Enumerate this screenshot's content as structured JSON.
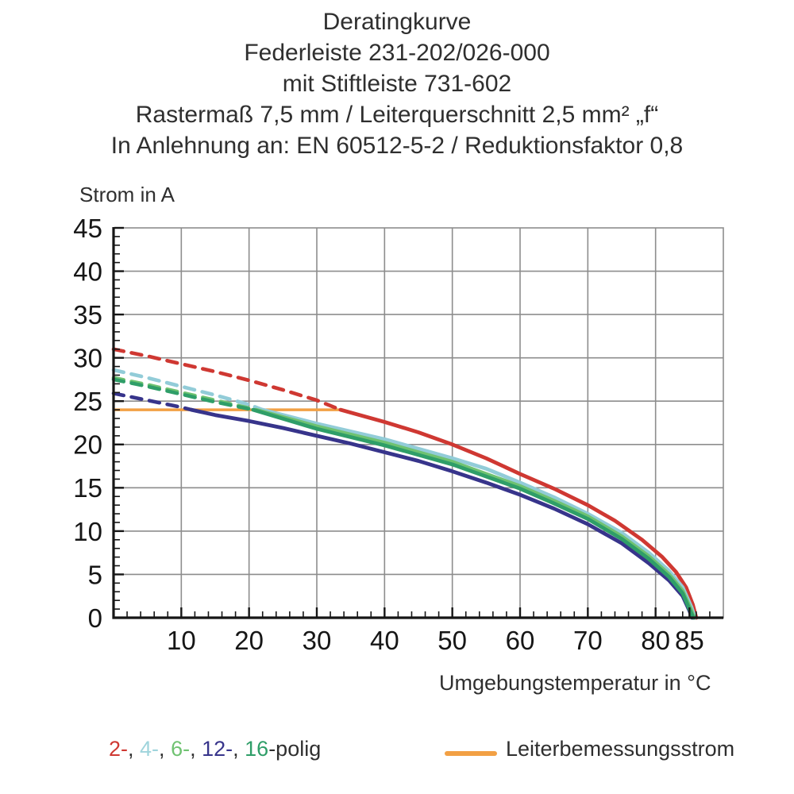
{
  "title": {
    "lines": [
      "Deratingkurve",
      "Federleiste 231-202/026-000",
      "mit Stiftleiste 731-602",
      "Rastermaß 7,5 mm / Leiterquerschnitt 2,5 mm² „f“",
      "In Anlehnung an: EN 60512-5-2 / Reduktionsfaktor 0,8"
    ]
  },
  "legend": {
    "poles_parts": [
      {
        "text": "2-",
        "color": "#cf3832"
      },
      {
        "text": ", ",
        "color": "#2f2f2f"
      },
      {
        "text": "4-",
        "color": "#9fd4dc"
      },
      {
        "text": ", ",
        "color": "#2f2f2f"
      },
      {
        "text": "6-",
        "color": "#6fc271"
      },
      {
        "text": ", ",
        "color": "#2f2f2f"
      },
      {
        "text": "12-",
        "color": "#37348b"
      },
      {
        "text": ", ",
        "color": "#2f2f2f"
      },
      {
        "text": "16",
        "color": "#2f9e68"
      },
      {
        "text": "-polig",
        "color": "#2f2f2f"
      }
    ],
    "reference_label": "Leiterbemessungsstrom",
    "reference_color": "#f2a044"
  },
  "chart_data": {
    "type": "line",
    "title": "Deratingkurve Federleiste 231-202/026-000 mit Stiftleiste 731-602",
    "xlabel": "Umgebungstemperatur in °C",
    "ylabel": "Strom in A",
    "grid": true,
    "style": {
      "grid_color": "#8d8d8d",
      "axis_color": "#161616",
      "label_color": "#161616"
    },
    "axes": {
      "x": {
        "min": 0,
        "max": 90,
        "gridline_step": 10,
        "gridline_max": 80,
        "minor_step": 2,
        "labels": [
          10,
          20,
          30,
          40,
          50,
          60,
          70,
          80,
          85
        ]
      },
      "y": {
        "min": 0,
        "max": 45,
        "gridline_step": 5,
        "minor_step": 1,
        "labels": [
          0,
          5,
          10,
          15,
          20,
          25,
          30,
          35,
          40,
          45
        ]
      }
    },
    "reference_line": {
      "name": "Leiterbemessungsstrom",
      "value": 24,
      "x_from": 0,
      "x_to": 33.5,
      "color": "#f2a044"
    },
    "series": [
      {
        "name": "2-polig",
        "color": "#cf3832",
        "solid_from": 33.5,
        "points": [
          [
            0,
            31
          ],
          [
            5,
            30.2
          ],
          [
            10,
            29.3
          ],
          [
            15,
            28.4
          ],
          [
            20,
            27.4
          ],
          [
            25,
            26.3
          ],
          [
            30,
            25.1
          ],
          [
            33.5,
            24
          ],
          [
            40,
            22.6
          ],
          [
            45,
            21.4
          ],
          [
            50,
            20
          ],
          [
            55,
            18.4
          ],
          [
            60,
            16.6
          ],
          [
            65,
            14.9
          ],
          [
            70,
            13
          ],
          [
            74,
            11.2
          ],
          [
            78,
            9
          ],
          [
            81,
            7
          ],
          [
            83,
            5.3
          ],
          [
            84.5,
            3.5
          ],
          [
            85.5,
            1.5
          ],
          [
            86,
            0
          ]
        ]
      },
      {
        "name": "4-polig",
        "color": "#92ccd8",
        "solid_from": 22,
        "points": [
          [
            0,
            28.6
          ],
          [
            5,
            27.7
          ],
          [
            10,
            26.7
          ],
          [
            15,
            25.7
          ],
          [
            20,
            24.6
          ],
          [
            22,
            24
          ],
          [
            30,
            22.4
          ],
          [
            40,
            20.6
          ],
          [
            50,
            18.4
          ],
          [
            55,
            17.2
          ],
          [
            60,
            15.6
          ],
          [
            65,
            13.9
          ],
          [
            70,
            12
          ],
          [
            75,
            9.8
          ],
          [
            79,
            7.5
          ],
          [
            82,
            5.4
          ],
          [
            84,
            3.5
          ],
          [
            85.3,
            1.2
          ],
          [
            85.8,
            0
          ]
        ]
      },
      {
        "name": "6-polig",
        "color": "#6fc271",
        "solid_from": 21,
        "points": [
          [
            0,
            27.7
          ],
          [
            5,
            26.9
          ],
          [
            10,
            26
          ],
          [
            15,
            25.1
          ],
          [
            20,
            24.2
          ],
          [
            21,
            24
          ],
          [
            30,
            22.1
          ],
          [
            40,
            20.2
          ],
          [
            50,
            18
          ],
          [
            60,
            15.2
          ],
          [
            65,
            13.5
          ],
          [
            70,
            11.7
          ],
          [
            75,
            9.4
          ],
          [
            79,
            7.1
          ],
          [
            82,
            5
          ],
          [
            84,
            3.1
          ],
          [
            85.2,
            1
          ],
          [
            85.7,
            0
          ]
        ]
      },
      {
        "name": "12-polig",
        "color": "#37348b",
        "solid_from": 11.5,
        "points": [
          [
            0,
            25.9
          ],
          [
            5,
            25.1
          ],
          [
            10,
            24.3
          ],
          [
            11.5,
            24
          ],
          [
            15,
            23.4
          ],
          [
            20,
            22.7
          ],
          [
            25,
            21.9
          ],
          [
            30,
            21
          ],
          [
            35,
            20.1
          ],
          [
            40,
            19.1
          ],
          [
            45,
            18.1
          ],
          [
            50,
            16.9
          ],
          [
            55,
            15.6
          ],
          [
            60,
            14.2
          ],
          [
            65,
            12.6
          ],
          [
            70,
            10.8
          ],
          [
            75,
            8.6
          ],
          [
            79,
            6.3
          ],
          [
            82,
            4.3
          ],
          [
            84,
            2.5
          ],
          [
            85,
            0.8
          ],
          [
            85.4,
            0
          ]
        ]
      },
      {
        "name": "16-polig",
        "color": "#2f9e68",
        "solid_from": 20.6,
        "points": [
          [
            0,
            27.5
          ],
          [
            5,
            26.7
          ],
          [
            10,
            25.8
          ],
          [
            15,
            24.9
          ],
          [
            20,
            24.1
          ],
          [
            20.6,
            24
          ],
          [
            30,
            21.8
          ],
          [
            40,
            19.9
          ],
          [
            50,
            17.7
          ],
          [
            60,
            14.9
          ],
          [
            65,
            13.2
          ],
          [
            70,
            11.4
          ],
          [
            75,
            9.1
          ],
          [
            79,
            6.8
          ],
          [
            82,
            4.7
          ],
          [
            84,
            2.8
          ],
          [
            85.1,
            0.8
          ],
          [
            85.6,
            0
          ]
        ]
      }
    ]
  }
}
